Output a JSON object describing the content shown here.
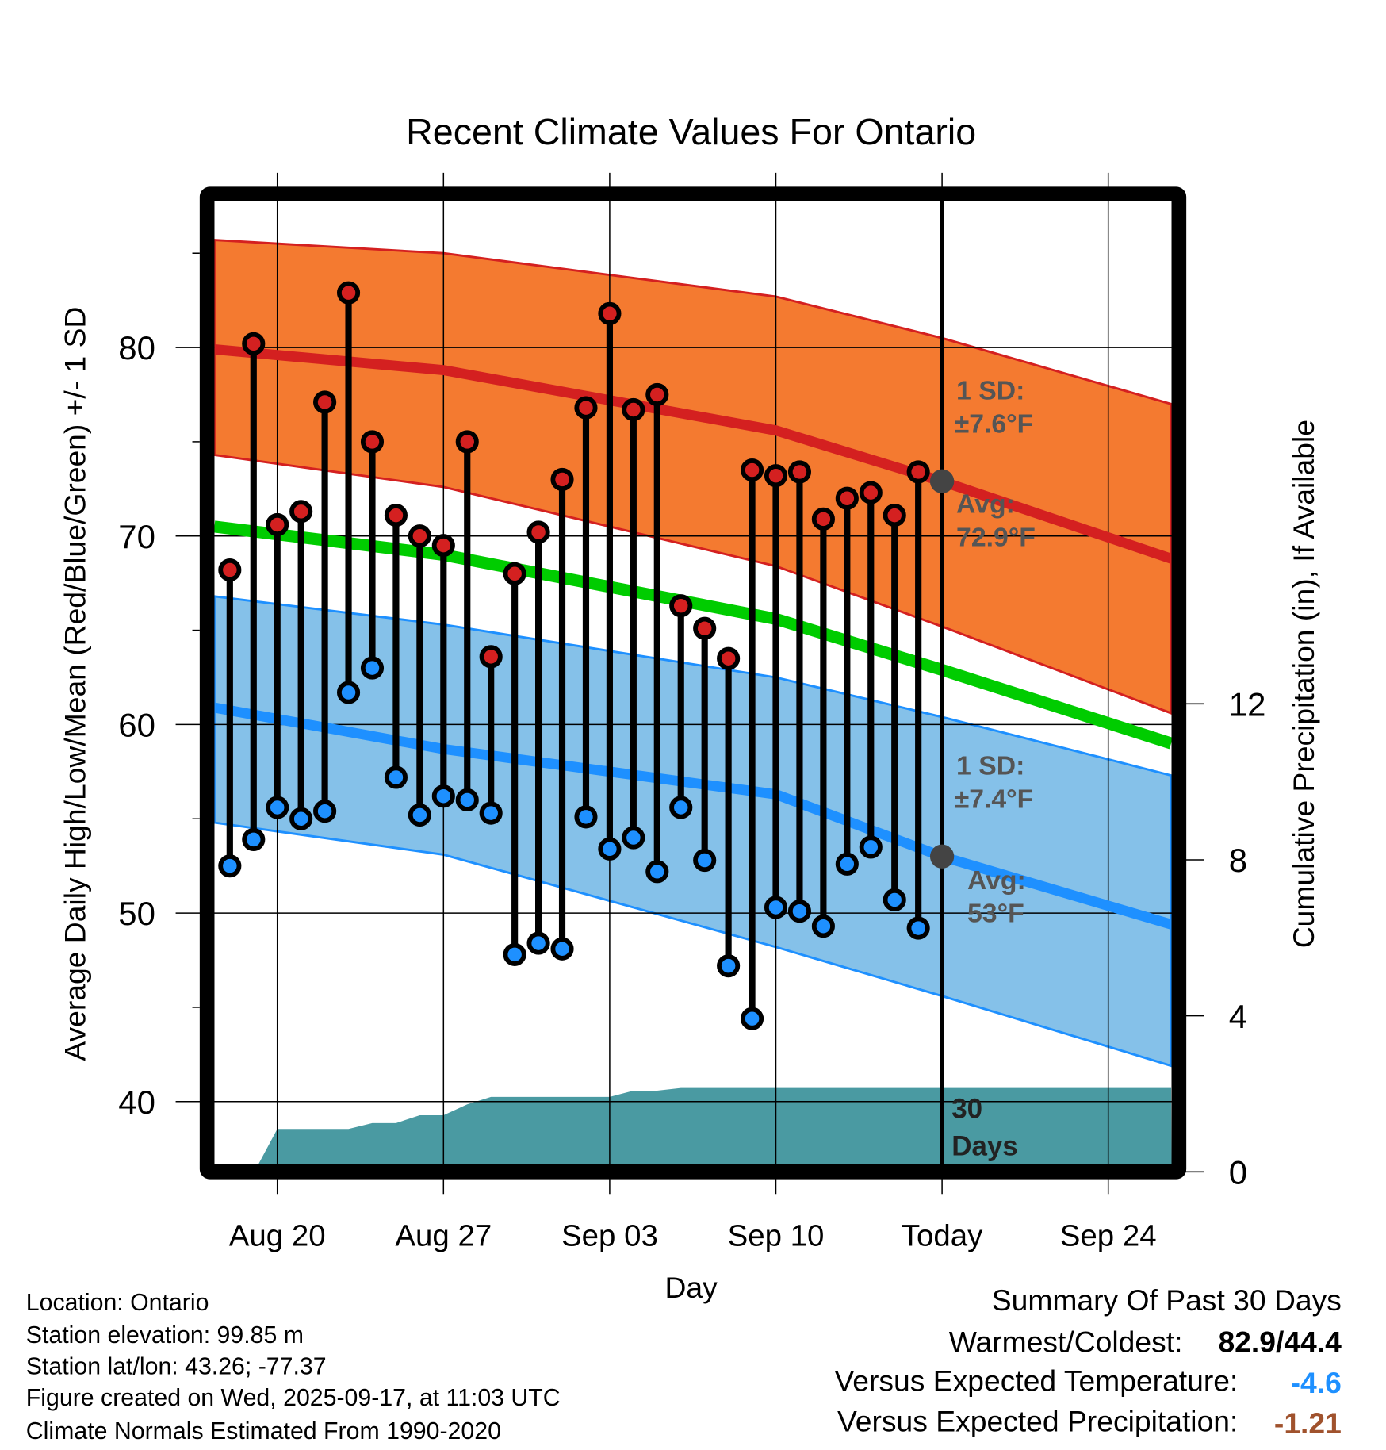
{
  "chart_data": {
    "type": "line",
    "title": "Recent Climate Values For Ontario",
    "xlabel": "Day",
    "ylabel": "Average Daily High/Low/Mean (Red/Blue/Green) +/- 1 SD",
    "y2label": "Cumulative Precipitation (in), If Available",
    "x_unit": "days since Aug 20",
    "xlim": [
      -2.65,
      37.65
    ],
    "ylim": [
      36.6,
      88.9
    ],
    "y2lim": [
      0,
      12
    ],
    "x_ticks": [
      {
        "day": 0,
        "label": "Aug 20"
      },
      {
        "day": 7,
        "label": "Aug 27"
      },
      {
        "day": 14,
        "label": "Sep 03"
      },
      {
        "day": 21,
        "label": "Sep 10"
      },
      {
        "day": 28,
        "label": "Today"
      },
      {
        "day": 35,
        "label": "Sep 24"
      }
    ],
    "y_ticks": [
      40,
      50,
      60,
      70,
      80
    ],
    "y2_ticks": [
      0,
      4,
      8,
      12
    ],
    "grid": true,
    "observed": {
      "days": [
        -2,
        -1,
        0,
        1,
        2,
        3,
        4,
        5,
        6,
        7,
        8,
        9,
        10,
        11,
        12,
        13,
        14,
        15,
        16,
        17,
        18,
        19,
        20,
        21,
        22,
        23,
        24,
        25,
        26,
        27
      ],
      "highs": [
        68.2,
        80.2,
        70.6,
        71.3,
        77.1,
        82.9,
        75.0,
        71.1,
        70.0,
        69.5,
        75.0,
        63.6,
        68.0,
        70.2,
        73.0,
        76.8,
        81.8,
        76.7,
        77.5,
        66.3,
        65.1,
        63.5,
        73.5,
        73.2,
        73.4,
        70.9,
        72.0,
        72.3,
        71.1,
        73.4
      ],
      "lows": [
        52.5,
        53.9,
        55.6,
        55.0,
        55.4,
        61.7,
        63.0,
        57.2,
        55.2,
        56.2,
        56.0,
        55.3,
        47.8,
        48.4,
        48.1,
        55.1,
        53.4,
        54.0,
        52.2,
        55.6,
        52.8,
        47.2,
        44.4,
        50.3,
        50.1,
        49.3,
        52.6,
        53.5,
        50.7,
        49.2
      ]
    },
    "normals": {
      "days": [
        -2.65,
        7,
        21,
        28,
        37.65
      ],
      "high_avg": [
        79.9,
        78.8,
        75.6,
        72.9,
        68.8
      ],
      "high_upper": [
        85.7,
        85.0,
        82.7,
        80.5,
        77.0
      ],
      "high_lower": [
        74.3,
        72.6,
        68.4,
        65.2,
        60.6
      ],
      "mean": [
        70.5,
        69.0,
        65.6,
        62.9,
        59.0
      ],
      "low_avg": [
        60.9,
        58.7,
        56.3,
        53.0,
        49.4
      ],
      "low_upper": [
        66.8,
        65.3,
        62.5,
        60.4,
        57.3
      ],
      "low_lower": [
        54.8,
        53.1,
        48.2,
        45.6,
        41.9
      ]
    },
    "precip": {
      "days": [
        -0.8,
        0,
        3,
        4,
        5,
        6,
        7,
        8,
        9,
        14,
        15,
        16,
        17,
        37.65
      ],
      "cumulative_in": [
        0,
        1.1,
        1.1,
        1.25,
        1.25,
        1.45,
        1.45,
        1.73,
        1.92,
        1.92,
        2.08,
        2.08,
        2.15,
        2.15
      ]
    },
    "annotations": {
      "high_sd_label": "1 SD:",
      "high_sd_value": "±7.6°F",
      "high_avg_label": "Avg:",
      "high_avg_value": "72.9°F",
      "low_sd_label": "1 SD:",
      "low_sd_value": "±7.4°F",
      "low_avg_label": "Avg:",
      "low_avg_value": "53°F",
      "precip_label_1": "30",
      "precip_label_2": "Days"
    },
    "today_high_avg": 72.9,
    "today_low_avg": 53,
    "colors": {
      "high_band": "#f47a30",
      "high_line": "#d42020",
      "low_band": "#85c1e9",
      "low_line": "#1e90ff",
      "mean_line": "#00cc00",
      "precip": "#4a9aa2",
      "annotation": "#555555"
    }
  },
  "footer": {
    "location": "Location: Ontario",
    "elevation": "Station elevation: 99.85 m",
    "latlon": "Station lat/lon: 43.26; -77.37",
    "created": "Figure created on Wed, 2025-09-17, at 11:03 UTC",
    "normals": "Climate Normals Estimated From 1990-2020"
  },
  "summary": {
    "title": "Summary Of Past 30 Days",
    "warm_cold_label": "Warmest/Coldest:",
    "warm_cold_value": "82.9/44.4",
    "temp_label": "Versus Expected Temperature:",
    "temp_value": "-4.6",
    "precip_label": "Versus Expected Precipitation:",
    "precip_value": "-1.21",
    "temp_color": "#1e90ff",
    "precip_color": "#a0522d"
  }
}
